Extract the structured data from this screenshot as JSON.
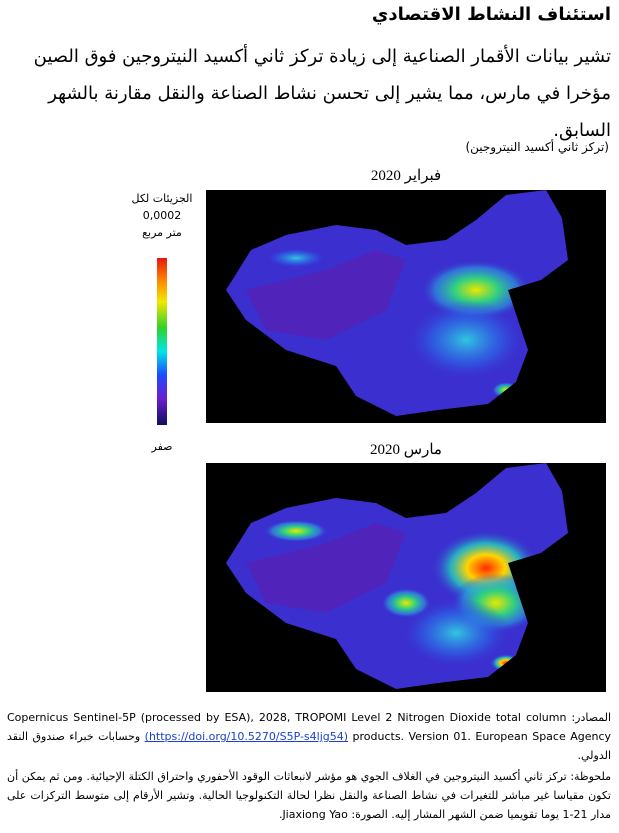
{
  "header": {
    "title": "استئناف النشاط الاقتصادي",
    "intro": "تشير بيانات الأقمار الصناعية إلى زيادة تركز ثاني أكسيد النيتروجين فوق الصين مؤخرا في مارس، مما يشير إلى تحسن نشاط الصناعة والنقل مقارنة بالشهر السابق."
  },
  "figure": {
    "caption": "(تركز ثاني أكسيد النيتروجين)",
    "maps": [
      {
        "label": "فبراير 2020"
      },
      {
        "label": "مارس 2020"
      }
    ],
    "legend": {
      "unit_line1": "الجزيئات لكل",
      "max": "0,0002",
      "unit_line2": "متر مربع",
      "min": "صفر"
    }
  },
  "notes": {
    "sources_label": "المصادر:",
    "sources_text": "Copernicus Sentinel-5P (processed by ESA), 2028, TROPOMI Level 2 Nitrogen Dioxide total column products. Version 01. European Space Agency",
    "sources_link": "(https://doi.org/10.5270/S5P-s4ljg54)",
    "sources_suffix": "وحسابات خبراء صندوق النقد الدولي.",
    "note": "ملحوظة: تركز ثاني أكسيد النيتروجين في الغلاف الجوي هو مؤشر لانبعاثات الوقود الأحفوري واحتراق الكتلة الإحيائية. ومن ثم يمكن أن تكون مقياسا غير مباشر للتغيرات في نشاط الصناعة والنقل نظرا لحالة التكنولوجيا الحالية. وتشير الأرقام إلى متوسط التركزات على مدار 21-1 يوما تقويميا ضمن الشهر المشار إليه. الصورة: Jiaxiong Yao."
  }
}
